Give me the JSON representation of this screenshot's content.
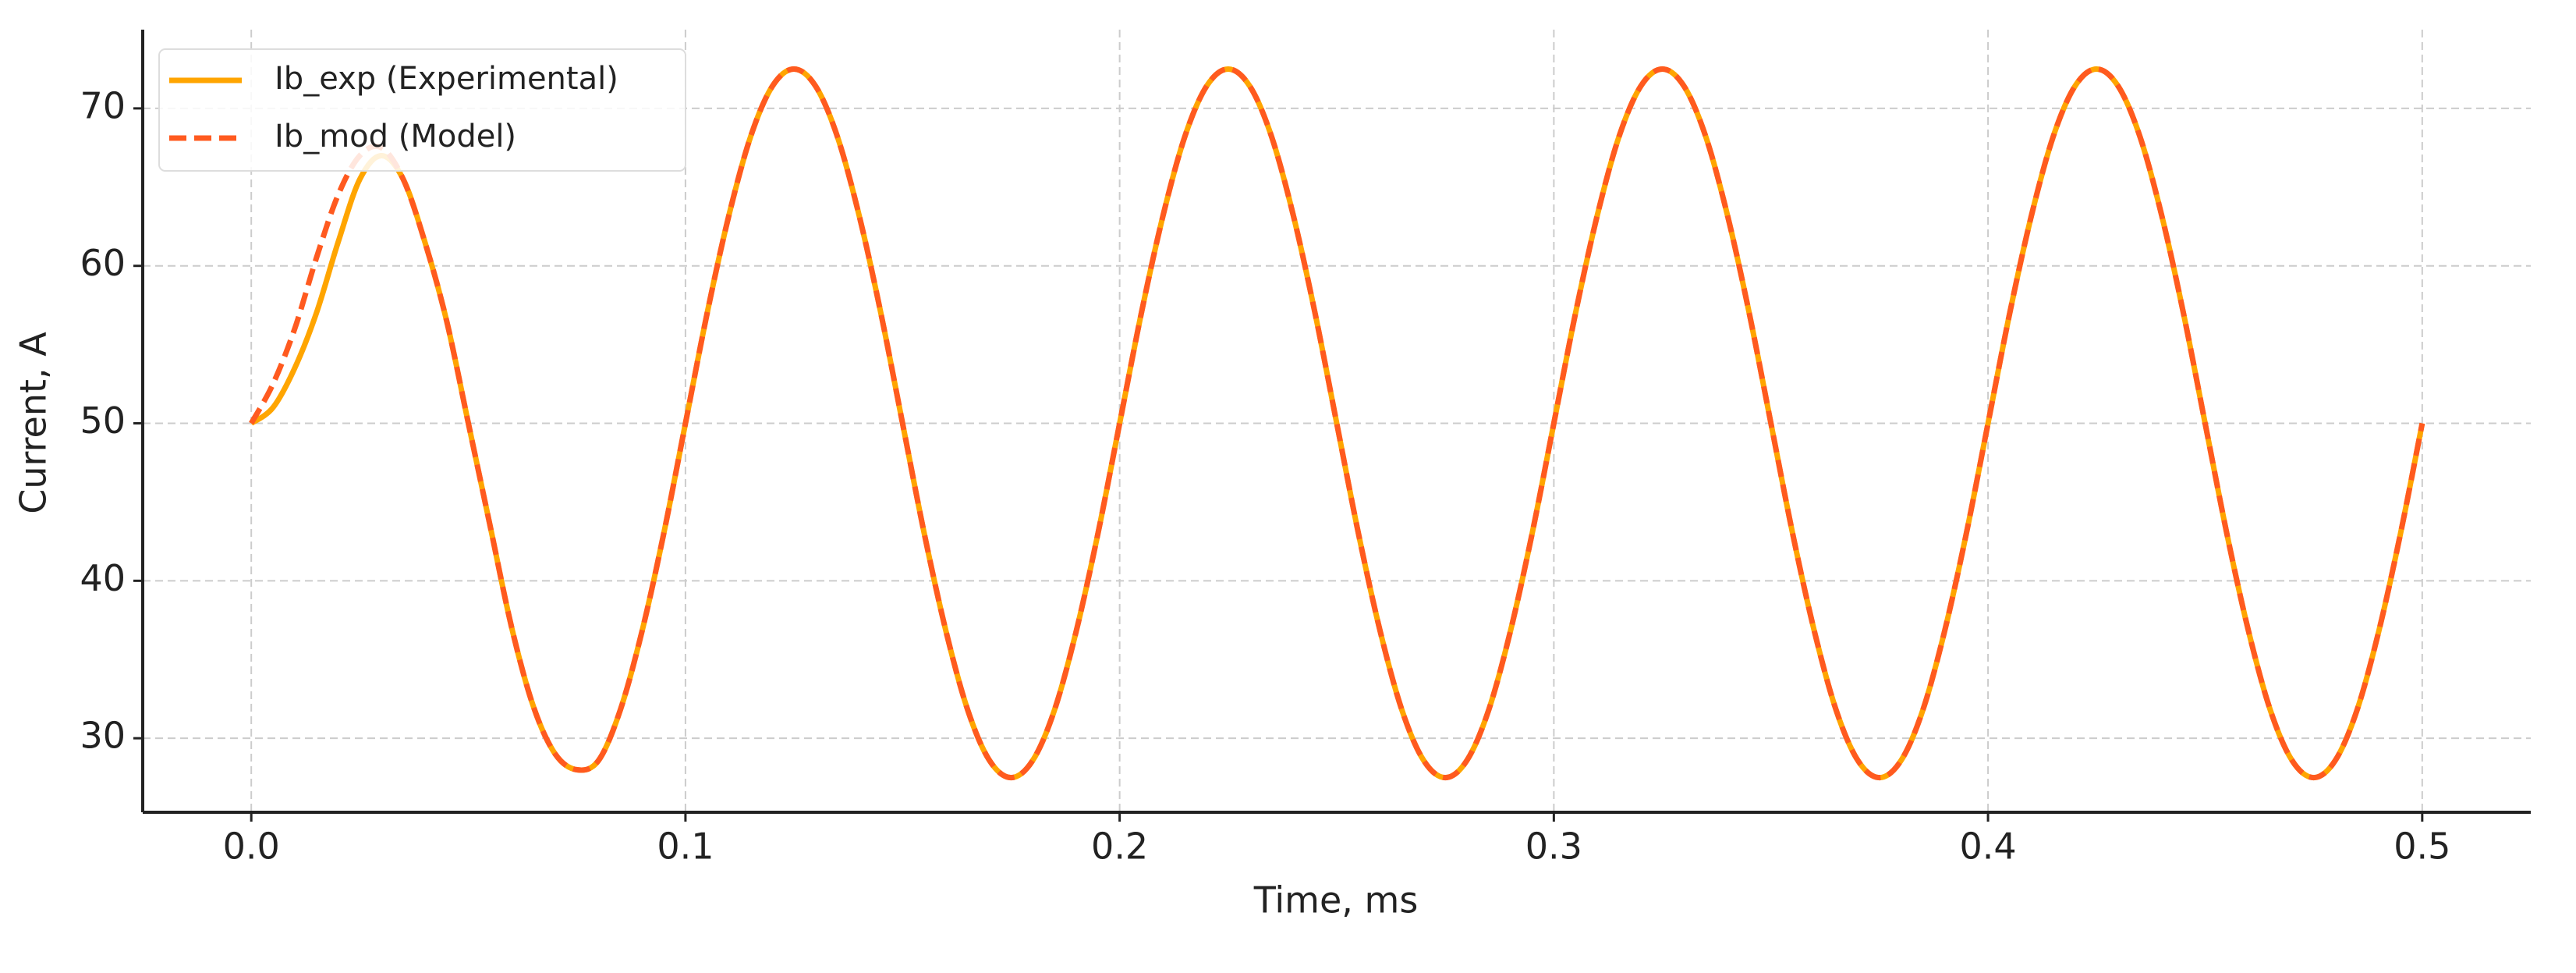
{
  "chart_data": {
    "type": "line",
    "xlabel": "Time, ms",
    "ylabel": "Current, A",
    "x": [
      0,
      0.005,
      0.01,
      0.015,
      0.02,
      0.025,
      0.03,
      0.035,
      0.04,
      0.045,
      0.05,
      0.055,
      0.06,
      0.065,
      0.07,
      0.075,
      0.08,
      0.085,
      0.09,
      0.095,
      0.1,
      0.105,
      0.11,
      0.115,
      0.12,
      0.125,
      0.13,
      0.135,
      0.14,
      0.145,
      0.15,
      0.155,
      0.16,
      0.165,
      0.17,
      0.175,
      0.18,
      0.185,
      0.19,
      0.195,
      0.2,
      0.205,
      0.21,
      0.215,
      0.22,
      0.225,
      0.23,
      0.235,
      0.24,
      0.245,
      0.25,
      0.255,
      0.26,
      0.265,
      0.27,
      0.275,
      0.28,
      0.285,
      0.29,
      0.295,
      0.3,
      0.305,
      0.31,
      0.315,
      0.32,
      0.325,
      0.33,
      0.335,
      0.34,
      0.345,
      0.35,
      0.355,
      0.36,
      0.365,
      0.37,
      0.375,
      0.38,
      0.385,
      0.39,
      0.395,
      0.4,
      0.405,
      0.41,
      0.415,
      0.42,
      0.425,
      0.43,
      0.435,
      0.44,
      0.445,
      0.45,
      0.455,
      0.46,
      0.465,
      0.47,
      0.475,
      0.48,
      0.485,
      0.49,
      0.495,
      0.5
    ],
    "series": [
      {
        "name": "Ib_exp (Experimental)",
        "color": "#ffa500",
        "linestyle": "solid",
        "values": [
          50,
          51,
          53.5,
          57,
          61.5,
          65.5,
          67,
          65.5,
          61.5,
          56.5,
          50,
          43.5,
          37,
          32,
          29,
          28,
          28.6,
          31.8,
          36.8,
          43.0,
          50,
          57.0,
          63.2,
          68.2,
          71.4,
          72.5,
          71.4,
          68.2,
          63.2,
          57.0,
          50,
          43.0,
          36.8,
          31.8,
          28.6,
          27.5,
          28.6,
          31.8,
          36.8,
          43.0,
          50,
          57.0,
          63.2,
          68.2,
          71.4,
          72.5,
          71.4,
          68.2,
          63.2,
          57.0,
          50,
          43.0,
          36.8,
          31.8,
          28.6,
          27.5,
          28.6,
          31.8,
          36.8,
          43.0,
          50,
          57.0,
          63.2,
          68.2,
          71.4,
          72.5,
          71.4,
          68.2,
          63.2,
          57.0,
          50,
          43.0,
          36.8,
          31.8,
          28.6,
          27.5,
          28.6,
          31.8,
          36.8,
          43.0,
          50,
          57.0,
          63.2,
          68.2,
          71.4,
          72.5,
          71.4,
          68.2,
          63.2,
          57.0,
          50,
          43.0,
          36.8,
          31.8,
          28.6,
          27.5,
          28.6,
          31.8,
          36.8,
          43.0,
          50
        ]
      },
      {
        "name": "Ib_mod (Model)",
        "color": "#ff5a1f",
        "linestyle": "dashed",
        "values": [
          50,
          52.5,
          56,
          60.5,
          64.5,
          67,
          67.5,
          65.5,
          61.5,
          56.5,
          50,
          43.5,
          37,
          32,
          29,
          28,
          28.6,
          31.8,
          36.8,
          43.0,
          50,
          57.0,
          63.2,
          68.2,
          71.4,
          72.5,
          71.4,
          68.2,
          63.2,
          57.0,
          50,
          43.0,
          36.8,
          31.8,
          28.6,
          27.5,
          28.6,
          31.8,
          36.8,
          43.0,
          50,
          57.0,
          63.2,
          68.2,
          71.4,
          72.5,
          71.4,
          68.2,
          63.2,
          57.0,
          50,
          43.0,
          36.8,
          31.8,
          28.6,
          27.5,
          28.6,
          31.8,
          36.8,
          43.0,
          50,
          57.0,
          63.2,
          68.2,
          71.4,
          72.5,
          71.4,
          68.2,
          63.2,
          57.0,
          50,
          43.0,
          36.8,
          31.8,
          28.6,
          27.5,
          28.6,
          31.8,
          36.8,
          43.0,
          50,
          57.0,
          63.2,
          68.2,
          71.4,
          72.5,
          71.4,
          68.2,
          63.2,
          57.0,
          50,
          43.0,
          36.8,
          31.8,
          28.6,
          27.5,
          28.6,
          31.8,
          36.8,
          43.0,
          50
        ]
      }
    ],
    "xlim": [
      -0.025,
      0.525
    ],
    "ylim": [
      25.3,
      75
    ],
    "xticks": [
      {
        "value": 0,
        "label": "0.0"
      },
      0.1,
      0.2,
      0.3,
      0.4,
      0.5
    ],
    "yticks": [
      30,
      40,
      50,
      60,
      70
    ],
    "grid": true,
    "legend": "upper left"
  }
}
